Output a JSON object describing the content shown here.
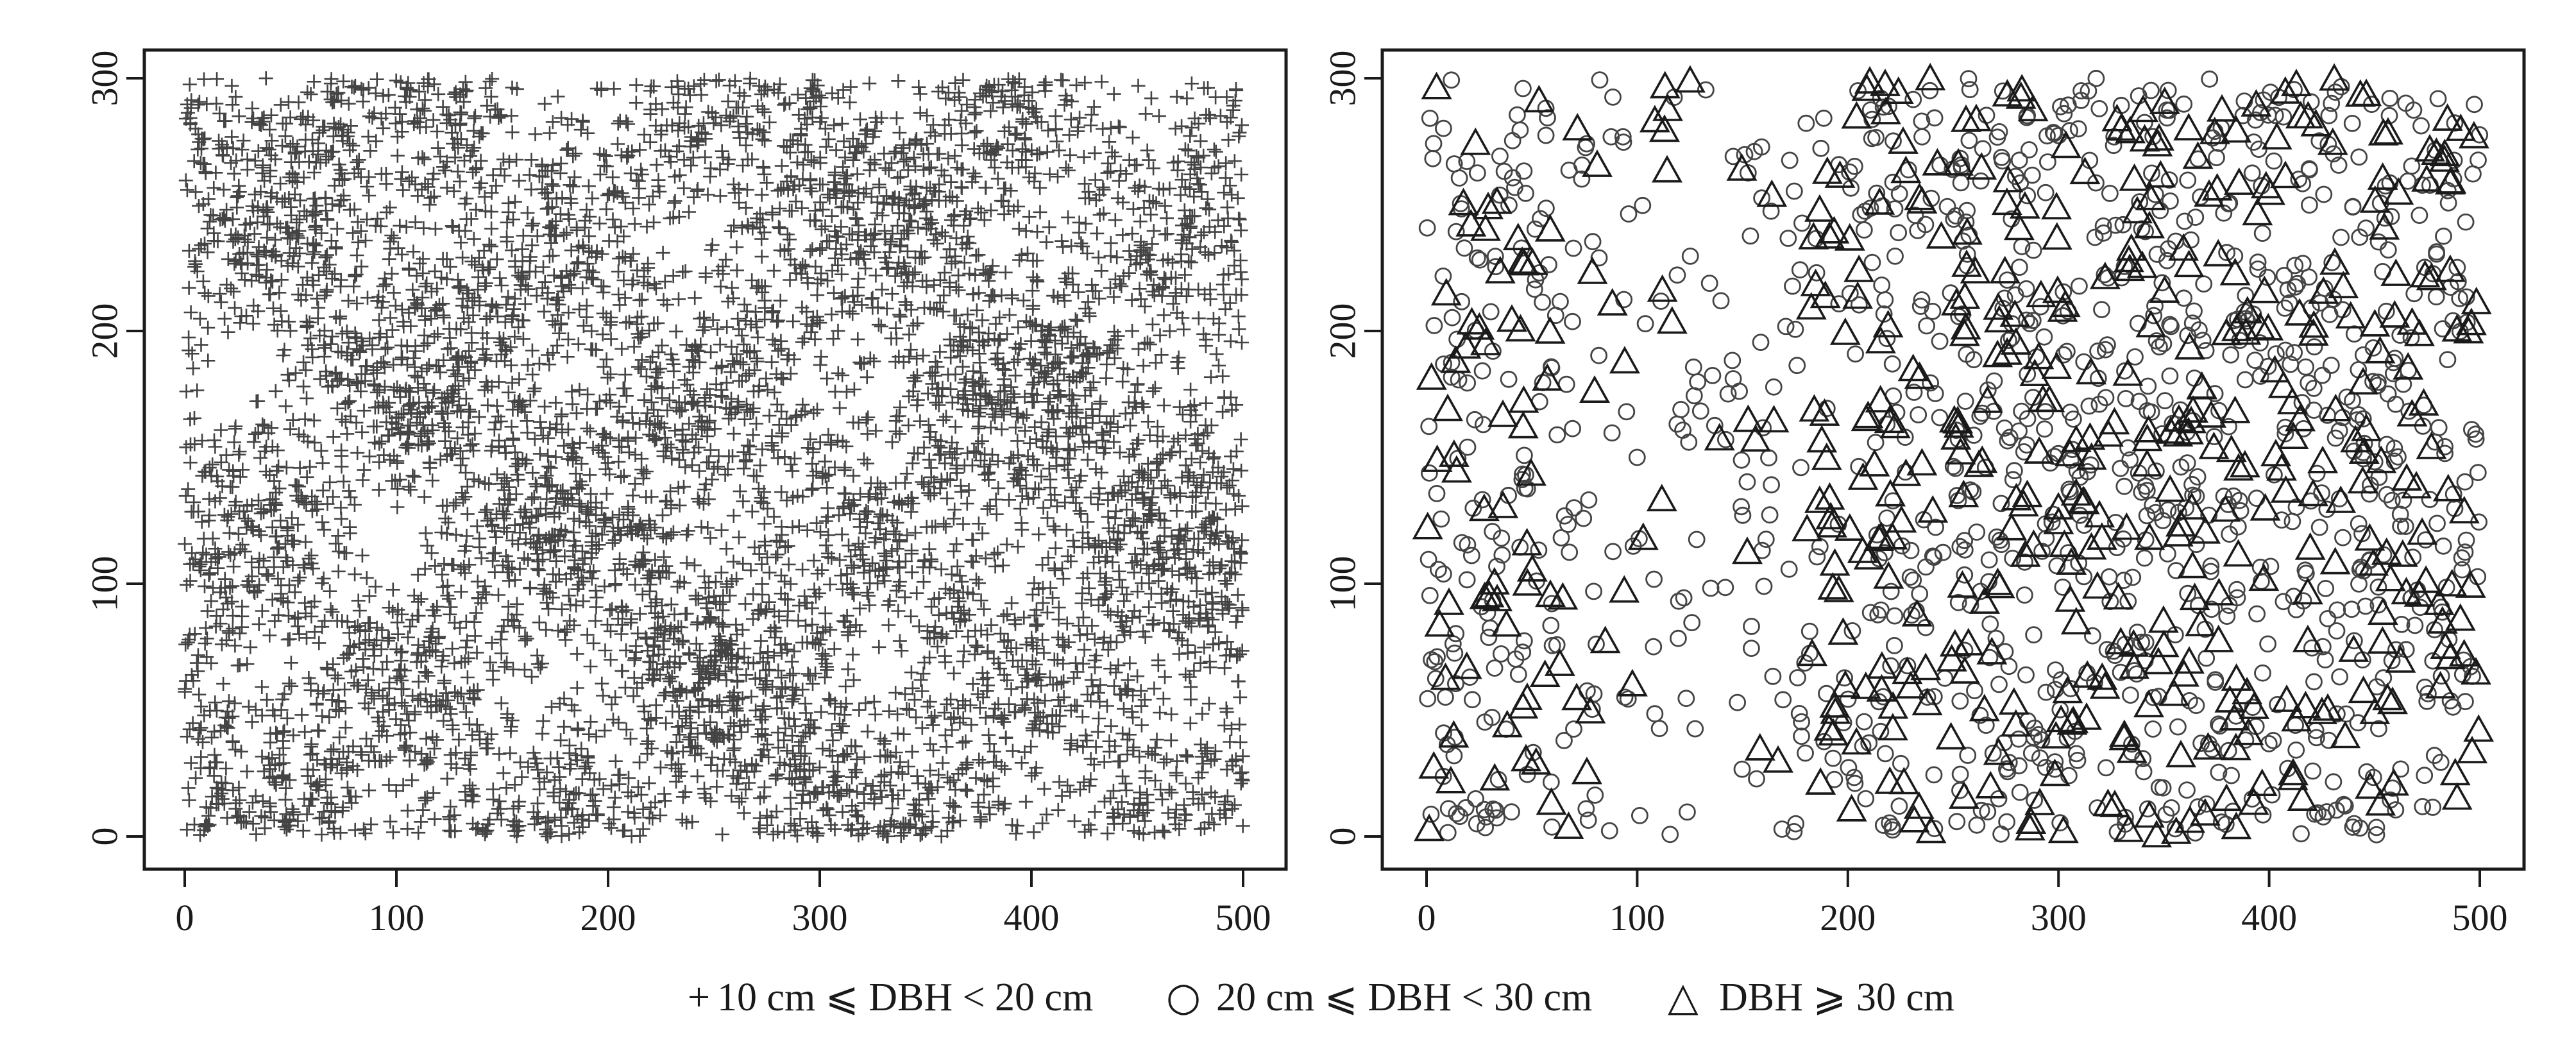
{
  "chart_data": [
    {
      "type": "scatter",
      "panel": "left",
      "xlim": [
        0,
        500
      ],
      "ylim": [
        0,
        300
      ],
      "x_ticks": [
        "0",
        "100",
        "200",
        "300",
        "400",
        "500"
      ],
      "y_ticks": [
        "0",
        "100",
        "200",
        "300"
      ],
      "grid": false,
      "series": [
        {
          "name": "10 cm ⩽ DBH < 20 cm",
          "marker": "plus",
          "approx_count": 6500,
          "distribution": "dense, roughly uniform over 0–500 × 0–300 with local clustering"
        }
      ]
    },
    {
      "type": "scatter",
      "panel": "right",
      "xlim": [
        0,
        500
      ],
      "ylim": [
        0,
        300
      ],
      "x_ticks": [
        "0",
        "100",
        "200",
        "300",
        "400",
        "500"
      ],
      "y_ticks": [
        "0",
        "100",
        "200",
        "300"
      ],
      "grid": false,
      "series": [
        {
          "name": "20 cm ⩽ DBH < 30 cm",
          "marker": "circle",
          "approx_count": 1150,
          "distribution": "scattered, sparser in x 60–200, denser toward x 250–500"
        },
        {
          "name": "DBH ⩾ 30 cm",
          "marker": "triangle",
          "approx_count": 520,
          "distribution": "concentrated at x 200–500, sparse in x 60–180"
        }
      ]
    }
  ],
  "legend": {
    "placement": "bottom-center",
    "items": [
      {
        "symbol": "+",
        "label": "10 cm ⩽ DBH < 20 cm"
      },
      {
        "symbol": "○",
        "label": "20 cm ⩽ DBH < 30 cm"
      },
      {
        "symbol": "△",
        "label": "DBH ⩾ 30 cm"
      }
    ]
  },
  "colors": {
    "marker": "#444444",
    "axis": "#1a1a1a",
    "background": "#ffffff"
  }
}
